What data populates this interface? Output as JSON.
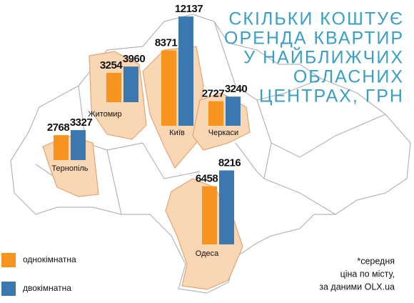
{
  "chart_data": {
    "type": "bar",
    "title": [
      "СКІЛЬКИ КОШТУЄ",
      "ОРЕНДА КВАРТИР",
      "У НАЙБЛИЖЧИХ",
      "ОБЛАСНИХ",
      "ЦЕНТРАХ, ГРН"
    ],
    "categories": [
      "Тернопіль",
      "Житомир",
      "Київ",
      "Черкаси",
      "Одеса"
    ],
    "series": [
      {
        "name": "однокімнатна",
        "color": "#f7941d",
        "values": [
          2768,
          3254,
          8371,
          2727,
          6458
        ]
      },
      {
        "name": "двокімнатна",
        "color": "#3b78b0",
        "values": [
          3327,
          3960,
          12137,
          3240,
          8216
        ]
      }
    ],
    "note": [
      "*середня",
      "ціна по місту,",
      "за даними OLX.ua"
    ]
  }
}
